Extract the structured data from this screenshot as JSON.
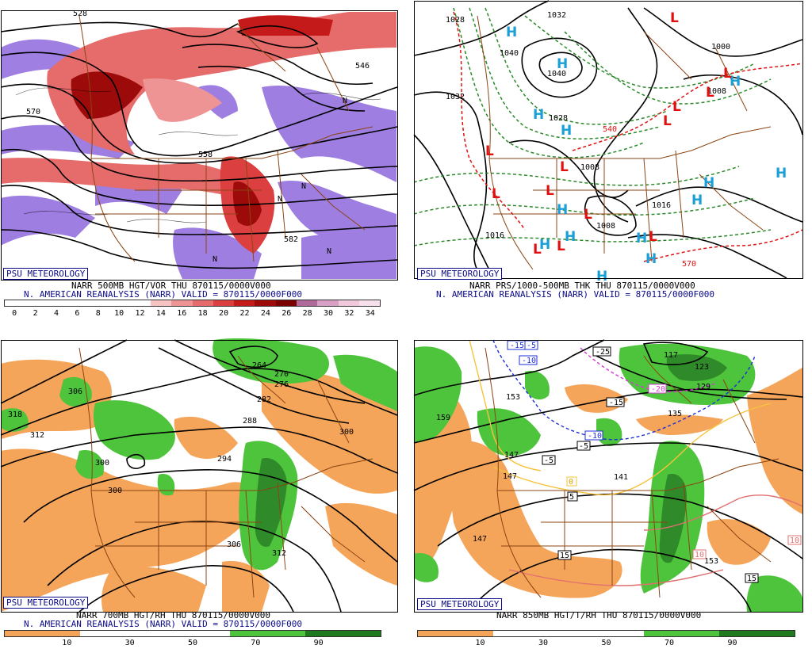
{
  "panels": {
    "p1": {
      "psu": "PSU METEOROLOGY",
      "caption1": "NARR 500MB HGT/VOR THU 870115/0000V000",
      "caption2": "N. AMERICAN REANALYSIS (NARR) VALID = 870115/0000F000",
      "scale": [
        "0",
        "2",
        "4",
        "6",
        "8",
        "10",
        "12",
        "14",
        "16",
        "18",
        "20",
        "22",
        "24",
        "26",
        "28",
        "30",
        "32",
        "34"
      ],
      "contour_labels": [
        "528",
        "546",
        "570",
        "558",
        "582",
        "N",
        "N",
        "N",
        "N",
        "N"
      ]
    },
    "p2": {
      "psu": "PSU METEOROLOGY",
      "caption1": "NARR PRS/1000-500MB THK THU 870115/0000V000",
      "caption2": "N. AMERICAN REANALYSIS (NARR) VALID = 870115/0000F000",
      "isobar_labels": [
        "1028",
        "1032",
        "1040",
        "1040",
        "1032",
        "1028",
        "1008",
        "1008",
        "1016",
        "1016",
        "1008",
        "1000"
      ],
      "thickness_labels": [
        "540",
        "570"
      ],
      "high_symbol": "H",
      "low_symbol": "L"
    },
    "p3": {
      "psu": "PSU METEOROLOGY",
      "caption1": "NARR 700MB HGT/RH THU 870115/0000V000",
      "caption2": "N. AMERICAN REANALYSIS (NARR) VALID = 870115/0000F000",
      "scale": [
        "10",
        "30",
        "50",
        "70",
        "90"
      ],
      "contour_labels": [
        "318",
        "312",
        "306",
        "300",
        "300",
        "294",
        "288",
        "282",
        "276",
        "270",
        "264",
        "306",
        "312",
        "300"
      ]
    },
    "p4": {
      "psu": "PSU METEOROLOGY",
      "caption1": "NARR 850MB HGT/T/RH THU 870115/0000V000",
      "scale": [
        "10",
        "30",
        "50",
        "70",
        "90"
      ],
      "contour_labels": [
        "159",
        "153",
        "147",
        "147",
        "141",
        "147",
        "135",
        "129",
        "123",
        "117",
        "153"
      ],
      "temp_labels": [
        "-15",
        "-5",
        "-10",
        "-25",
        "-20",
        "-15",
        "-10",
        "-5",
        "-5",
        "5",
        "0",
        "15",
        "10",
        "10",
        "15"
      ]
    }
  },
  "colors": {
    "vor_scale": [
      "#ffffff",
      "#ffffff",
      "#ffffff",
      "#ffffff",
      "#ffffff",
      "#ffffff",
      "#ffffff",
      "#f6c2c2",
      "#ee9494",
      "#e66b6b",
      "#dc3f3f",
      "#c41a1a",
      "#9c0a0a",
      "#7a0000",
      "#b06a9a",
      "#d7a0c4",
      "#efc8dc",
      "#f7e0ec"
    ],
    "rh_scale": [
      "#f5a55a",
      "#ffffff",
      "#ffffff",
      "#4dc43c",
      "#1f7a1f"
    ],
    "state_lines": "#8b4513",
    "contour": "#000000",
    "low": "#e01010",
    "high": "#19a0d8",
    "thickness_cold": "#2a8a2a",
    "thickness_warm": "#e01010"
  }
}
